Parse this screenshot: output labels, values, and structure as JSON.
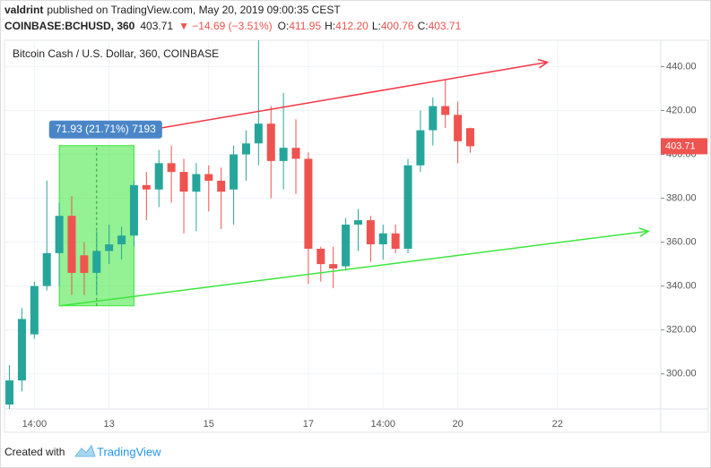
{
  "header": {
    "author": "valdrint",
    "published": "published on TradingView.com, May 20, 2019 09:00:35 CEST",
    "symbol": "COINBASE:BCHUSD, 360",
    "last": "403.71",
    "change": "▼ −14.69 (−3.51%)",
    "ohlc": [
      {
        "label": "O:",
        "value": "411.95"
      },
      {
        "label": "H:",
        "value": "412.20"
      },
      {
        "label": "L:",
        "value": "400.76"
      },
      {
        "label": "C:",
        "value": "403.71"
      }
    ]
  },
  "footer": {
    "created": "Created with",
    "brand": "TradingView"
  },
  "chart_data": {
    "type": "candlestick",
    "title": "Bitcoin Cash / U.S. Dollar, 360, COINBASE",
    "up_color": "#26a69a",
    "down_color": "#ef5350",
    "grid": true,
    "categories": [
      null,
      null,
      "14:00",
      null,
      null,
      null,
      null,
      null,
      "13",
      null,
      null,
      null,
      null,
      null,
      null,
      null,
      "15",
      null,
      null,
      null,
      null,
      null,
      null,
      null,
      "17",
      null,
      null,
      null,
      null,
      null,
      "14:00",
      null,
      null,
      null,
      null,
      null,
      "20",
      null,
      null,
      null,
      null,
      null,
      null,
      null,
      "22",
      null,
      null,
      null,
      null,
      null,
      null,
      null,
      null
    ],
    "xlim": [
      -0.4,
      52.3
    ],
    "series": [
      {
        "name": "open",
        "values": [
          286,
          297,
          318,
          340,
          355,
          372,
          354,
          346,
          356,
          359,
          363,
          386,
          384,
          396,
          392,
          383,
          391,
          388,
          384,
          400,
          405,
          414,
          397,
          403,
          398,
          357,
          350,
          349,
          368,
          370,
          359,
          364,
          357,
          395,
          411,
          422,
          418,
          411.95,
          null,
          null,
          null,
          null,
          null,
          null,
          null,
          null,
          null,
          null,
          null,
          null,
          null,
          null,
          null
        ]
      },
      {
        "name": "high",
        "values": [
          304,
          330,
          342,
          388,
          378,
          381,
          360,
          365,
          368,
          367,
          388,
          392,
          402,
          404,
          398,
          396,
          395,
          394,
          404,
          411,
          452,
          422,
          428,
          416,
          401,
          358,
          358,
          371,
          375,
          372,
          368,
          368,
          398,
          420,
          426,
          434,
          424,
          412.2,
          null,
          null,
          null,
          null,
          null,
          null,
          null,
          null,
          null,
          null,
          null,
          null,
          null,
          null,
          null
        ]
      },
      {
        "name": "low",
        "values": [
          284,
          292,
          316,
          338,
          340,
          336,
          336,
          336,
          350,
          352,
          358,
          370,
          376,
          378,
          364,
          365,
          374,
          366,
          368,
          388,
          395,
          380,
          384,
          382,
          341,
          342,
          339,
          347,
          356,
          351,
          352,
          355,
          355,
          392,
          404,
          412,
          396,
          400.76,
          null,
          null,
          null,
          null,
          null,
          null,
          null,
          null,
          null,
          null,
          null,
          null,
          null,
          null,
          null
        ]
      },
      {
        "name": "close",
        "values": [
          297,
          325,
          340,
          355,
          372,
          346,
          346,
          356,
          359,
          363,
          386,
          384,
          396,
          392,
          383,
          391,
          388,
          383,
          400,
          405,
          414,
          397,
          403,
          398,
          357,
          350,
          348,
          368,
          370,
          359,
          364,
          357,
          395,
          411,
          422,
          418,
          406,
          403.71,
          null,
          null,
          null,
          null,
          null,
          null,
          null,
          null,
          null,
          null,
          null,
          null,
          null,
          null,
          null
        ]
      }
    ],
    "ylim": [
      284,
      452
    ],
    "yticks": [
      {
        "value": 300,
        "label": "300.00"
      },
      {
        "value": 320,
        "label": "320.00"
      },
      {
        "value": 340,
        "label": "340.00"
      },
      {
        "value": 360,
        "label": "360.00"
      },
      {
        "value": 380,
        "label": "380.00"
      },
      {
        "value": 400,
        "label": "400.00"
      },
      {
        "value": 420,
        "label": "420.00"
      },
      {
        "value": 440,
        "label": "440.00"
      }
    ],
    "last_price": {
      "value": 403.71,
      "label": "403.71"
    },
    "trendlines": [
      {
        "color": "#f23645",
        "points": [
          [
            10.07,
            410
          ],
          [
            43.2,
            442
          ]
        ]
      },
      {
        "color": "#3ce63c",
        "points": [
          [
            4.07,
            331
          ],
          [
            51.3,
            365
          ]
        ]
      }
    ],
    "range_box": {
      "x": [
        4,
        10
      ],
      "y": [
        331,
        404
      ],
      "label": "71.93 (21.71%) 7193"
    }
  }
}
